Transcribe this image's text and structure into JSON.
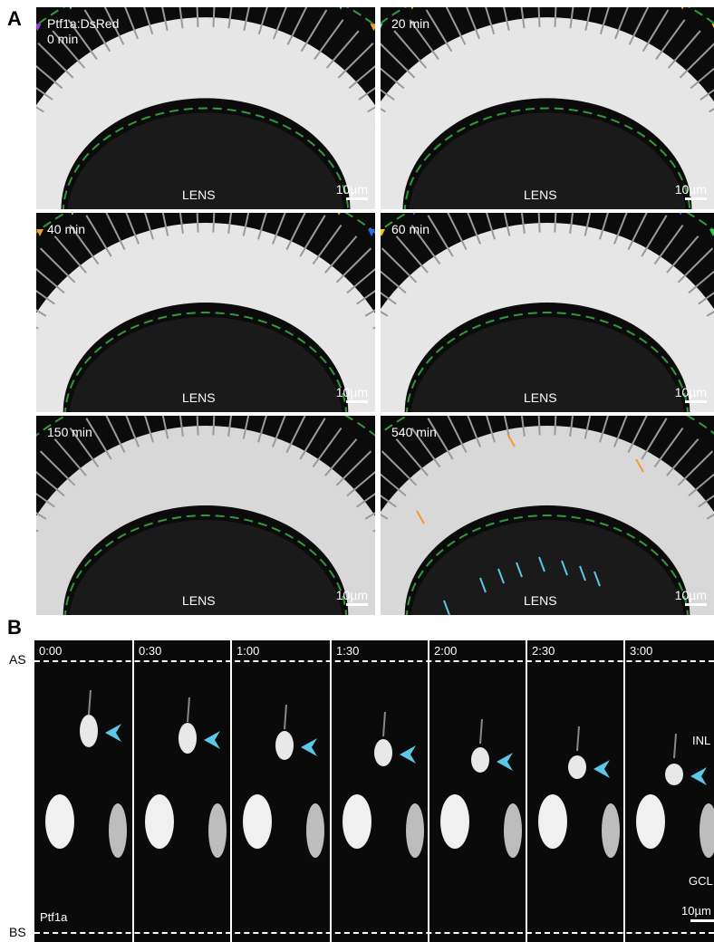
{
  "panel_a": {
    "letter": "A",
    "tiles": [
      {
        "label": "Ptf1a:DsRed\n0 min",
        "lens": "LENS",
        "scale": "10µm"
      },
      {
        "label": "20 min",
        "lens": "LENS",
        "scale": "10µm"
      },
      {
        "label": "40 min",
        "lens": "LENS",
        "scale": "10µm"
      },
      {
        "label": "60 min",
        "lens": "LENS",
        "scale": "10µm"
      },
      {
        "label": "150 min",
        "lens": "LENS",
        "scale": "10µm"
      },
      {
        "label": "540 min",
        "lens": "LENS",
        "scale": "10µm"
      }
    ]
  },
  "panel_b": {
    "letter": "B",
    "as_label": "AS",
    "bs_label": "BS",
    "times": [
      "0:00",
      "0:30",
      "1:00",
      "1:30",
      "2:00",
      "2:30",
      "3:00"
    ],
    "inl_label": "INL",
    "gcl_label": "GCL",
    "marker_label": "Ptf1a",
    "scale": "10µm"
  },
  "colors": {
    "arrowhead_cyan": "#5cc8e8",
    "dashed_green": "#2e9a3a",
    "arrow_orange": "#f29a2e"
  }
}
